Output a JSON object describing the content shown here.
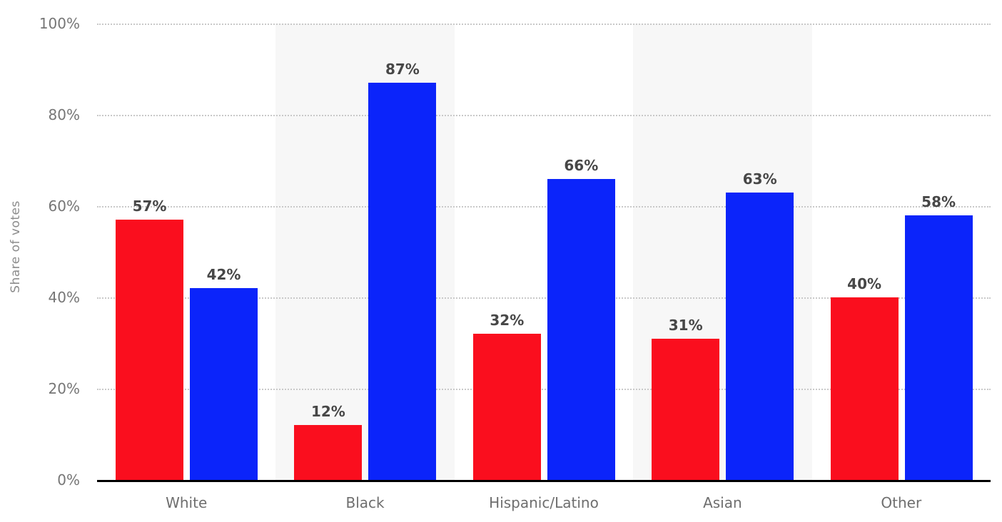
{
  "chart_data": {
    "type": "bar",
    "title": "",
    "ylabel": "Share of votes",
    "xlabel": "",
    "categories": [
      "White",
      "Black",
      "Hispanic/Latino",
      "Asian",
      "Other"
    ],
    "series": [
      {
        "name": "red-series",
        "color": "#fa0e1e",
        "values": [
          57,
          12,
          32,
          31,
          40
        ]
      },
      {
        "name": "blue-series",
        "color": "#0b24fa",
        "values": [
          42,
          87,
          66,
          63,
          58
        ]
      }
    ],
    "ylim": [
      0,
      100
    ],
    "yticks": [
      0,
      20,
      40,
      60,
      80,
      100
    ],
    "ytick_suffix": "%",
    "data_label_suffix": "%",
    "grid": "horizontal-dotted",
    "legend_position": "none",
    "plot_band_alternate_fill": "#f7f7f7"
  },
  "styles": {
    "background": "#ffffff",
    "grid_color": "#c9c9c9",
    "axis_line_color": "#000000",
    "ytick_label_color": "#767676",
    "category_label_color": "#6e6e6e",
    "data_label_color": "#474747",
    "yaxis_title_color": "#8c8c8c"
  }
}
